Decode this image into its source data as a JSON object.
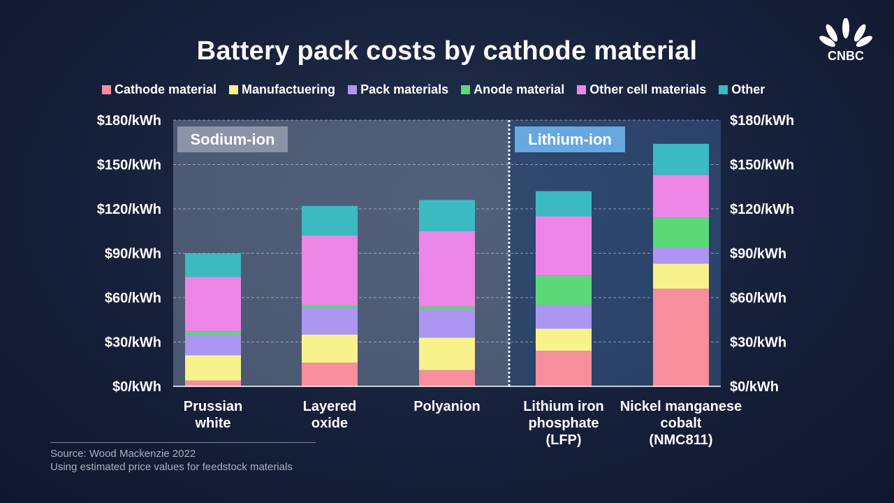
{
  "title": "Battery pack costs by cathode material",
  "logo_text": "CNBC",
  "source": {
    "line1": "Source: Wood Mackenzie 2022",
    "line2": "Using estimated price values for feedstock materials"
  },
  "chart_data": {
    "type": "bar",
    "stacked": true,
    "categories": [
      [
        "Prussian",
        "white"
      ],
      [
        "Layered",
        "oxide"
      ],
      [
        "Polyanion"
      ],
      [
        "Lithium iron",
        "phosphate",
        "(LFP)"
      ],
      [
        "Nickel manganese",
        "cobalt",
        "(NMC811)"
      ]
    ],
    "groups": [
      {
        "label": "Sodium-ion",
        "categories": [
          0,
          1,
          2
        ]
      },
      {
        "label": "Lithium-ion",
        "categories": [
          3,
          4
        ]
      }
    ],
    "ylim": [
      0,
      180
    ],
    "yticks": [
      0,
      30,
      60,
      90,
      120,
      150,
      180
    ],
    "ytick_labels": [
      "$0/kWh",
      "$30/kWh",
      "$60/kWh",
      "$90/kWh",
      "$120/kWh",
      "$150/kWh",
      "$180/kWh"
    ],
    "grid": true,
    "legend_position": "top",
    "series": [
      {
        "name": "Cathode material",
        "color": "#f78e9c",
        "values": [
          4,
          16,
          11,
          24,
          66
        ]
      },
      {
        "name": "Manufactuering",
        "color": "#f7f28c",
        "values": [
          17,
          19,
          22,
          15,
          17
        ]
      },
      {
        "name": "Pack materials",
        "color": "#ac96f2",
        "values": [
          14,
          18,
          19,
          16,
          11
        ]
      },
      {
        "name": "Anode material",
        "color": "#5bd978",
        "values": [
          2,
          2,
          2,
          20,
          20
        ]
      },
      {
        "name": "Other cell materials",
        "color": "#ec86e6",
        "values": [
          37,
          47,
          51,
          40,
          29
        ]
      },
      {
        "name": "Other",
        "color": "#3bbac1",
        "values": [
          16,
          20,
          21,
          17,
          21
        ]
      }
    ]
  }
}
